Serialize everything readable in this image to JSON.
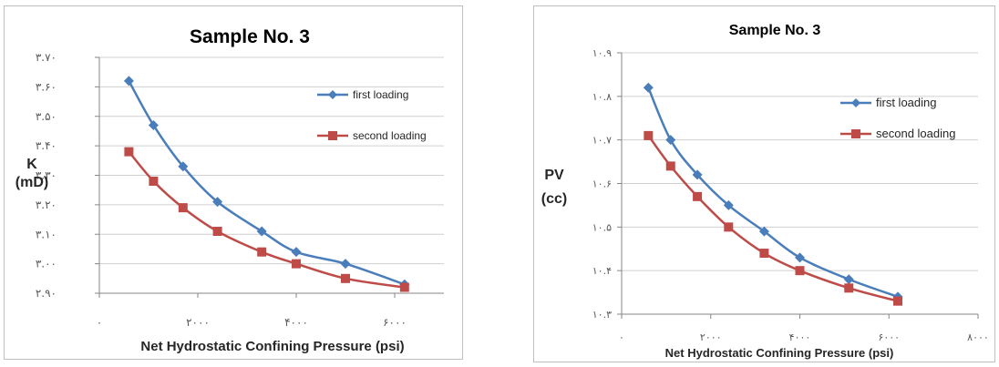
{
  "chart_data": [
    {
      "type": "line",
      "title": "Sample No. 3",
      "xlabel": "Net Hydrostatic Confining Pressure (psi)",
      "ylabel_lines": [
        "K",
        "(mD)"
      ],
      "xlim": [
        0,
        7000
      ],
      "ylim": [
        2.9,
        3.7
      ],
      "x_ticks": [
        0,
        2000,
        4000,
        6000
      ],
      "x_tick_labels": [
        "٠",
        "٢٠٠٠",
        "۴٠٠٠",
        "۶٠٠٠"
      ],
      "y_ticks": [
        2.9,
        3.0,
        3.1,
        3.2,
        3.3,
        3.4,
        3.5,
        3.6,
        3.7
      ],
      "y_tick_labels": [
        "٢.٩٠",
        "٣.٠٠",
        "٣.١٠",
        "٣.٢٠",
        "٣.٣٠",
        "٣.۴٠",
        "٣.۵٠",
        "٣.۶٠",
        "٣.٧٠"
      ],
      "grid": true,
      "legend_position": "right",
      "series": [
        {
          "name": "first loading",
          "color": "#4a7ebb",
          "marker": "diamond",
          "x": [
            600,
            1100,
            1700,
            2400,
            3300,
            4000,
            5000,
            6200
          ],
          "y": [
            3.62,
            3.47,
            3.33,
            3.21,
            3.11,
            3.04,
            3.0,
            2.93
          ]
        },
        {
          "name": "second loading",
          "color": "#be4b48",
          "marker": "square",
          "x": [
            600,
            1100,
            1700,
            2400,
            3300,
            4000,
            5000,
            6200
          ],
          "y": [
            3.38,
            3.28,
            3.19,
            3.11,
            3.04,
            3.0,
            2.95,
            2.92
          ]
        }
      ]
    },
    {
      "type": "line",
      "title": "Sample No. 3",
      "xlabel": "Net Hydrostatic Confining Pressure (psi)",
      "ylabel_lines": [
        "PV",
        "(cc)"
      ],
      "xlim": [
        0,
        8000
      ],
      "ylim": [
        10.3,
        10.9
      ],
      "x_ticks": [
        0,
        2000,
        4000,
        6000,
        8000
      ],
      "x_tick_labels": [
        "٠",
        "٢٠٠٠",
        "۴٠٠٠",
        "۶٠٠٠",
        "٨٠٠٠"
      ],
      "y_ticks": [
        10.3,
        10.4,
        10.5,
        10.6,
        10.7,
        10.8,
        10.9
      ],
      "y_tick_labels": [
        "١٠.٣",
        "١٠.۴",
        "١٠.۵",
        "١٠.۶",
        "١٠.٧",
        "١٠.٨",
        "١٠.٩"
      ],
      "grid": true,
      "legend_position": "right",
      "series": [
        {
          "name": "first loading",
          "color": "#4a7ebb",
          "marker": "diamond",
          "x": [
            600,
            1100,
            1700,
            2400,
            3200,
            4000,
            5100,
            6200
          ],
          "y": [
            10.82,
            10.7,
            10.62,
            10.55,
            10.49,
            10.43,
            10.38,
            10.34
          ]
        },
        {
          "name": "second loading",
          "color": "#be4b48",
          "marker": "square",
          "x": [
            600,
            1100,
            1700,
            2400,
            3200,
            4000,
            5100,
            6200
          ],
          "y": [
            10.71,
            10.64,
            10.57,
            10.5,
            10.44,
            10.4,
            10.36,
            10.33
          ]
        }
      ]
    }
  ]
}
